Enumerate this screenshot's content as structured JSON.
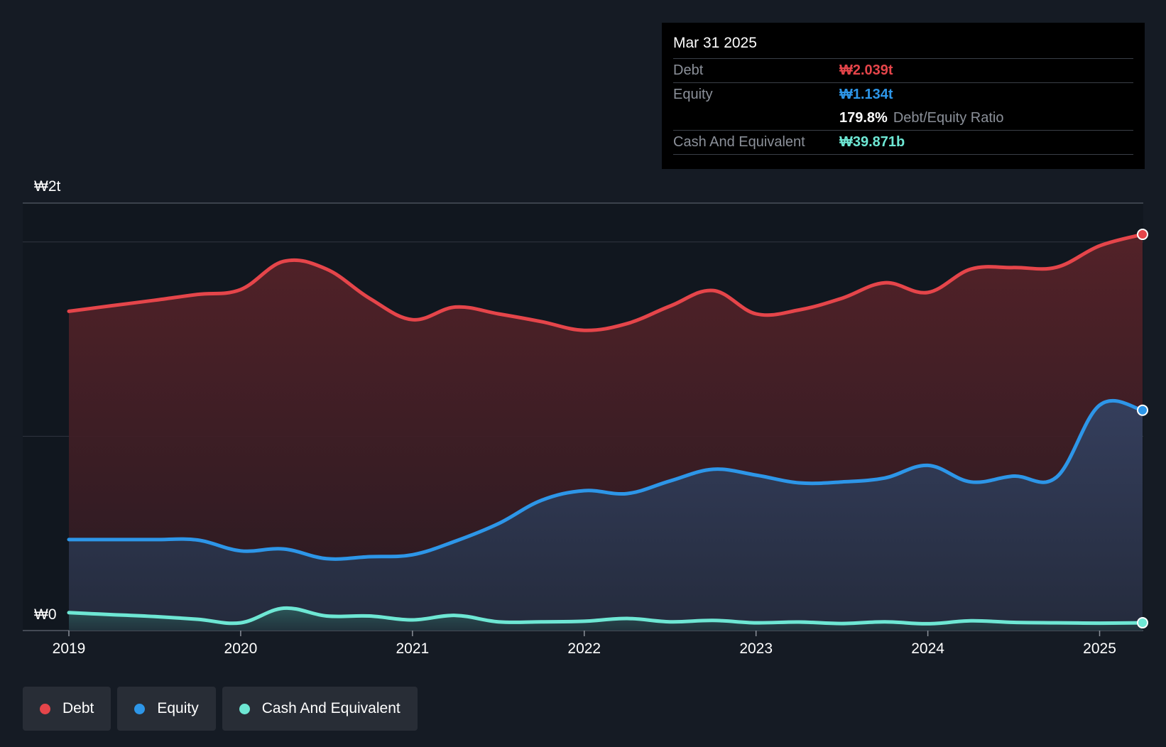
{
  "colors": {
    "debt": "#e5454a",
    "equity": "#2d96e8",
    "cash": "#6ee7d4",
    "background": "#151b24"
  },
  "tooltip": {
    "date": "Mar 31 2025",
    "debt_label": "Debt",
    "debt_value": "₩2.039t",
    "equity_label": "Equity",
    "equity_value": "₩1.134t",
    "ratio_value": "179.8%",
    "ratio_label": "Debt/Equity Ratio",
    "cash_label": "Cash And Equivalent",
    "cash_value": "₩39.871b"
  },
  "legend": [
    {
      "label": "Debt",
      "color": "#e5454a"
    },
    {
      "label": "Equity",
      "color": "#2d96e8"
    },
    {
      "label": "Cash And Equivalent",
      "color": "#6ee7d4"
    }
  ],
  "chart_data": {
    "type": "area",
    "title": "",
    "xlabel": "",
    "ylabel": "",
    "y_tick_labels": [
      "₩0",
      "₩2t"
    ],
    "x_tick_labels": [
      "2019",
      "2020",
      "2021",
      "2022",
      "2023",
      "2024",
      "2025"
    ],
    "xlim": [
      2019.0,
      2025.25
    ],
    "ylim": [
      0,
      2.2
    ],
    "units": "KRW trillions",
    "series": [
      {
        "name": "Debt",
        "x": [
          2019.0,
          2019.25,
          2019.5,
          2019.75,
          2020.0,
          2020.25,
          2020.5,
          2020.75,
          2021.0,
          2021.25,
          2021.5,
          2021.75,
          2022.0,
          2022.25,
          2022.5,
          2022.75,
          2023.0,
          2023.25,
          2023.5,
          2023.75,
          2024.0,
          2024.25,
          2024.5,
          2024.75,
          2025.0,
          2025.25
        ],
        "values": [
          1.643,
          1.672,
          1.7,
          1.73,
          1.755,
          1.9,
          1.86,
          1.71,
          1.6,
          1.665,
          1.63,
          1.59,
          1.545,
          1.58,
          1.67,
          1.75,
          1.63,
          1.65,
          1.71,
          1.79,
          1.74,
          1.86,
          1.868,
          1.87,
          1.98,
          2.039
        ]
      },
      {
        "name": "Equity",
        "x": [
          2019.0,
          2019.25,
          2019.5,
          2019.75,
          2020.0,
          2020.25,
          2020.5,
          2020.75,
          2021.0,
          2021.25,
          2021.5,
          2021.75,
          2022.0,
          2022.25,
          2022.5,
          2022.75,
          2023.0,
          2023.25,
          2023.5,
          2023.75,
          2024.0,
          2024.25,
          2024.5,
          2024.75,
          2025.0,
          2025.25
        ],
        "values": [
          0.468,
          0.468,
          0.468,
          0.466,
          0.41,
          0.42,
          0.37,
          0.38,
          0.39,
          0.46,
          0.55,
          0.67,
          0.72,
          0.705,
          0.77,
          0.83,
          0.8,
          0.76,
          0.765,
          0.785,
          0.85,
          0.765,
          0.795,
          0.79,
          1.16,
          1.134
        ]
      },
      {
        "name": "Cash And Equivalent",
        "x": [
          2019.0,
          2019.25,
          2019.5,
          2019.75,
          2020.0,
          2020.25,
          2020.5,
          2020.75,
          2021.0,
          2021.25,
          2021.5,
          2021.75,
          2022.0,
          2022.25,
          2022.5,
          2022.75,
          2023.0,
          2023.25,
          2023.5,
          2023.75,
          2024.0,
          2024.25,
          2024.5,
          2024.75,
          2025.0,
          2025.25
        ],
        "values": [
          0.092,
          0.082,
          0.072,
          0.058,
          0.04,
          0.115,
          0.075,
          0.075,
          0.055,
          0.078,
          0.045,
          0.045,
          0.048,
          0.062,
          0.045,
          0.052,
          0.04,
          0.044,
          0.036,
          0.045,
          0.035,
          0.05,
          0.042,
          0.04,
          0.038,
          0.04
        ]
      }
    ]
  }
}
